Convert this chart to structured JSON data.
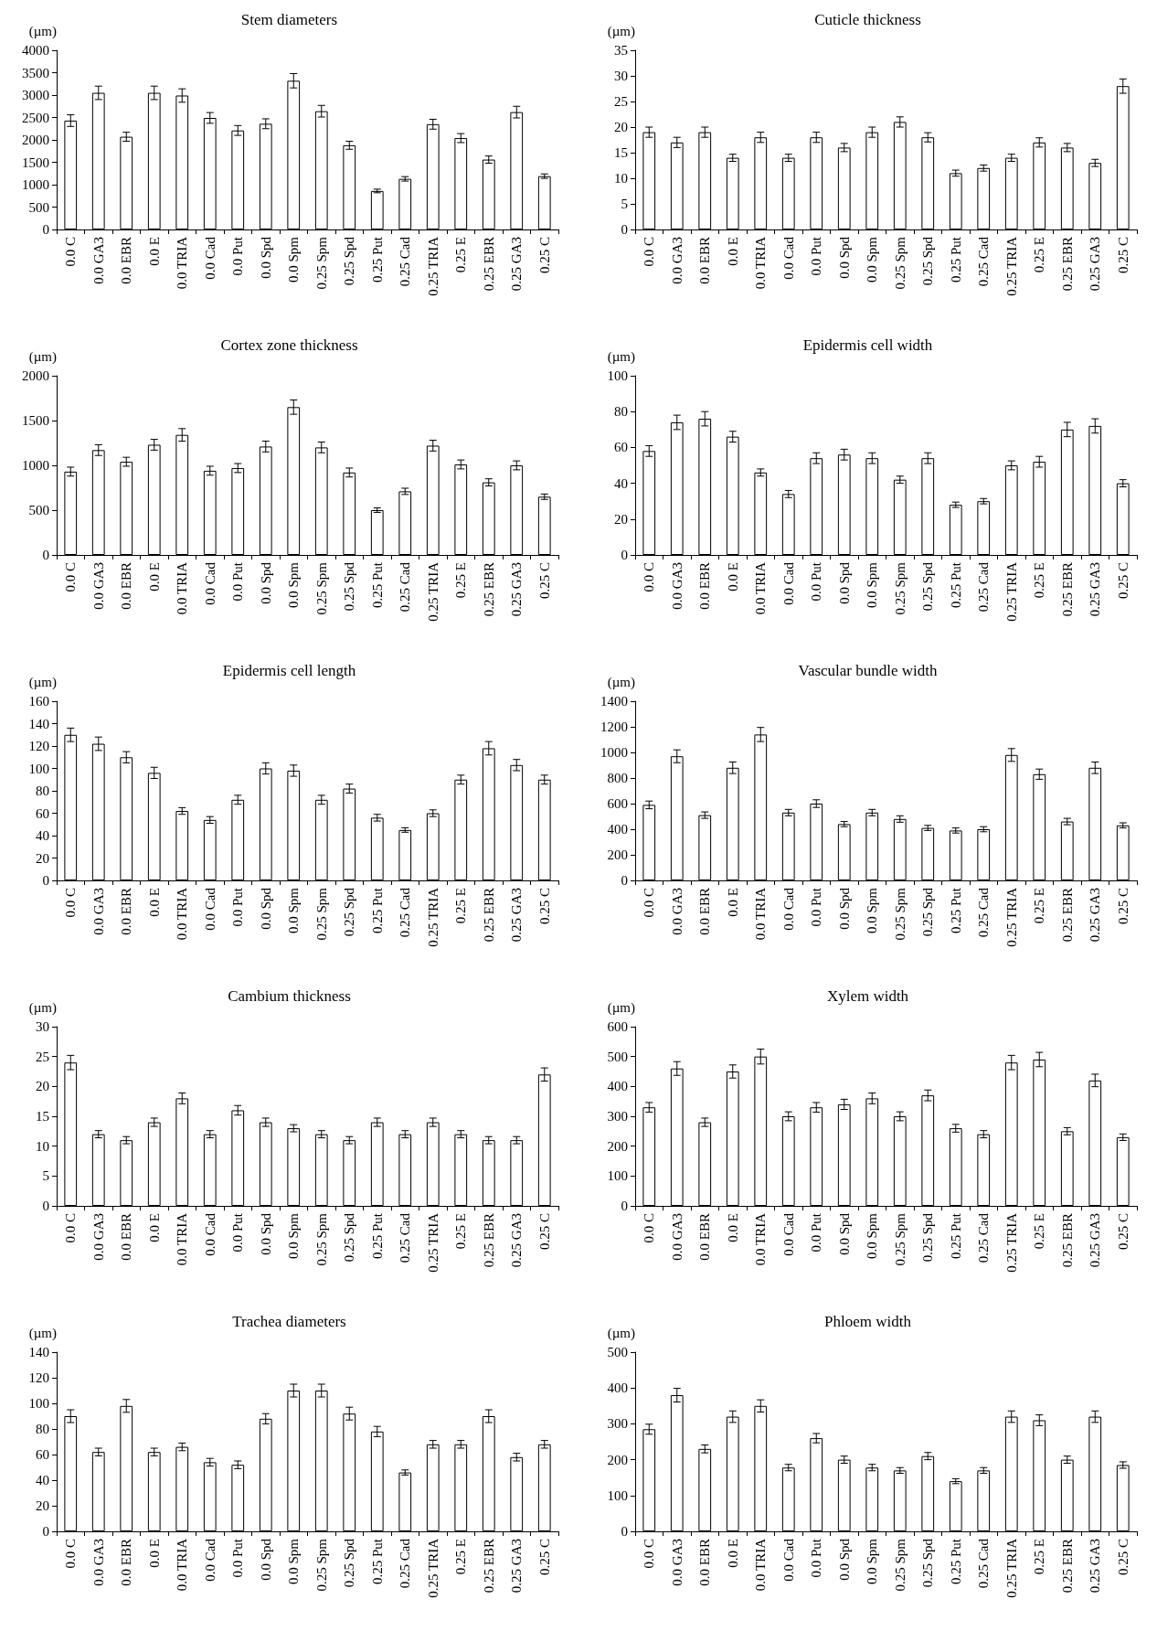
{
  "chart_data": [
    {
      "type": "bar",
      "title": "Stem diameters",
      "ylabel": "(µm)",
      "color": "#ffffff",
      "grid": false,
      "ylim": [
        0,
        4000
      ],
      "yticks": [
        0,
        500,
        1000,
        1500,
        2000,
        2500,
        3000,
        3500,
        4000
      ],
      "categories": [
        "0.0 C",
        "0.0 GA3",
        "0.0 EBR",
        "0.0 E",
        "0.0 TRIA",
        "0.0 Cad",
        "0.0 Put",
        "0.0 Spd",
        "0.0 Spm",
        "0.25 Spm",
        "0.25 Spd",
        "0.25 Put",
        "0.25 Cad",
        "0.25 TRIA",
        "0.25 E",
        "0.25 EBR",
        "0.25 GA3",
        "0.25 C"
      ],
      "values": [
        2430,
        3050,
        2070,
        3050,
        2990,
        2490,
        2210,
        2360,
        3320,
        2640,
        1880,
        860,
        1130,
        2350,
        2040,
        1560,
        2620,
        1190
      ],
      "errors": [
        130,
        150,
        100,
        150,
        150,
        120,
        110,
        110,
        160,
        130,
        90,
        40,
        50,
        110,
        100,
        80,
        130,
        50
      ]
    },
    {
      "type": "bar",
      "title": "Cuticle thickness",
      "ylabel": "(µm)",
      "color": "#ffffff",
      "grid": false,
      "ylim": [
        0,
        35
      ],
      "yticks": [
        0,
        5,
        10,
        15,
        20,
        25,
        30,
        35
      ],
      "categories": [
        "0.0 C",
        "0.0 GA3",
        "0.0 EBR",
        "0.0 E",
        "0.0 TRIA",
        "0.0 Cad",
        "0.0 Put",
        "0.0 Spd",
        "0.0 Spm",
        "0.25 Spm",
        "0.25 Spd",
        "0.25 Put",
        "0.25 Cad",
        "0.25 TRIA",
        "0.25 E",
        "0.25 EBR",
        "0.25 GA3",
        "0.25 C"
      ],
      "values": [
        19,
        17,
        19,
        14,
        18,
        14,
        18,
        16,
        19,
        21,
        18,
        11,
        12,
        14,
        17,
        16,
        13,
        28
      ],
      "errors": [
        1,
        1,
        1,
        0.7,
        1,
        0.7,
        1,
        0.8,
        1,
        1,
        0.9,
        0.6,
        0.6,
        0.7,
        0.9,
        0.8,
        0.7,
        1.4
      ]
    },
    {
      "type": "bar",
      "title": "Cortex zone thickness",
      "ylabel": "(µm)",
      "color": "#ffffff",
      "grid": false,
      "ylim": [
        0,
        2000
      ],
      "yticks": [
        0,
        500,
        1000,
        1500,
        2000
      ],
      "categories": [
        "0.0 C",
        "0.0 GA3",
        "0.0 EBR",
        "0.0 E",
        "0.0 TRIA",
        "0.0 Cad",
        "0.0 Put",
        "0.0 Spd",
        "0.0 Spm",
        "0.25 Spm",
        "0.25 Spd",
        "0.25 Put",
        "0.25 Cad",
        "0.25 TRIA",
        "0.25 E",
        "0.25 EBR",
        "0.25 GA3",
        "0.25 C"
      ],
      "values": [
        930,
        1170,
        1040,
        1230,
        1340,
        940,
        970,
        1210,
        1650,
        1200,
        920,
        500,
        710,
        1220,
        1010,
        810,
        1000,
        650
      ],
      "errors": [
        50,
        60,
        50,
        60,
        70,
        50,
        50,
        60,
        80,
        60,
        50,
        25,
        35,
        60,
        50,
        40,
        50,
        30
      ]
    },
    {
      "type": "bar",
      "title": "Epidermis cell width",
      "ylabel": "(µm)",
      "color": "#ffffff",
      "grid": false,
      "ylim": [
        0,
        100
      ],
      "yticks": [
        0,
        20,
        40,
        60,
        80,
        100
      ],
      "categories": [
        "0.0 C",
        "0.0 GA3",
        "0.0 EBR",
        "0.0 E",
        "0.0 TRIA",
        "0.0 Cad",
        "0.0 Put",
        "0.0 Spd",
        "0.0 Spm",
        "0.25 Spm",
        "0.25 Spd",
        "0.25 Put",
        "0.25 Cad",
        "0.25 TRIA",
        "0.25 E",
        "0.25 EBR",
        "0.25 GA3",
        "0.25 C"
      ],
      "values": [
        58,
        74,
        76,
        66,
        46,
        34,
        54,
        56,
        54,
        42,
        54,
        28,
        30,
        50,
        52,
        70,
        72,
        40
      ],
      "errors": [
        3,
        4,
        4,
        3,
        2,
        2,
        3,
        3,
        3,
        2,
        3,
        1.5,
        1.5,
        2.5,
        3,
        4,
        4,
        2
      ]
    },
    {
      "type": "bar",
      "title": "Epidermis cell length",
      "ylabel": "(µm)",
      "color": "#ffffff",
      "grid": false,
      "ylim": [
        0,
        160
      ],
      "yticks": [
        0,
        20,
        40,
        60,
        80,
        100,
        120,
        140,
        160
      ],
      "categories": [
        "0.0 C",
        "0.0 GA3",
        "0.0 EBR",
        "0.0 E",
        "0.0 TRIA",
        "0.0 Cad",
        "0.0 Put",
        "0.0 Spd",
        "0.0 Spm",
        "0.25 Spm",
        "0.25 Spd",
        "0.25 Put",
        "0.25 Cad",
        "0.25 TRIA",
        "0.25 E",
        "0.25 EBR",
        "0.25 GA3",
        "0.25 C"
      ],
      "values": [
        130,
        122,
        110,
        96,
        62,
        54,
        72,
        100,
        98,
        72,
        82,
        56,
        45,
        60,
        90,
        118,
        103,
        90
      ],
      "errors": [
        6,
        6,
        5,
        5,
        3,
        3,
        4,
        5,
        5,
        4,
        4,
        3,
        2,
        3,
        4,
        6,
        5,
        4
      ]
    },
    {
      "type": "bar",
      "title": "Vascular bundle width",
      "ylabel": "(µm)",
      "color": "#ffffff",
      "grid": false,
      "ylim": [
        0,
        1400
      ],
      "yticks": [
        0,
        200,
        400,
        600,
        800,
        1000,
        1200,
        1400
      ],
      "categories": [
        "0.0 C",
        "0.0 GA3",
        "0.0 EBR",
        "0.0 E",
        "0.0 TRIA",
        "0.0 Cad",
        "0.0 Put",
        "0.0 Spd",
        "0.0 Spm",
        "0.25 Spm",
        "0.25 Spd",
        "0.25 Put",
        "0.25 Cad",
        "0.25 TRIA",
        "0.25 E",
        "0.25 EBR",
        "0.25 GA3",
        "0.25 C"
      ],
      "values": [
        590,
        970,
        510,
        880,
        1140,
        530,
        600,
        440,
        530,
        480,
        410,
        390,
        400,
        980,
        830,
        460,
        880,
        430
      ],
      "errors": [
        30,
        50,
        25,
        45,
        55,
        25,
        30,
        20,
        25,
        25,
        20,
        20,
        20,
        50,
        40,
        25,
        45,
        20
      ]
    },
    {
      "type": "bar",
      "title": "Cambium thickness",
      "ylabel": "(µm)",
      "color": "#ffffff",
      "grid": false,
      "ylim": [
        0,
        30
      ],
      "yticks": [
        0,
        5,
        10,
        15,
        20,
        25,
        30
      ],
      "categories": [
        "0.0 C",
        "0.0 GA3",
        "0.0 EBR",
        "0.0 E",
        "0.0 TRIA",
        "0.0 Cad",
        "0.0 Put",
        "0.0 Spd",
        "0.0 Spm",
        "0.25 Spm",
        "0.25 Spd",
        "0.25 Put",
        "0.25 Cad",
        "0.25 TRIA",
        "0.25 E",
        "0.25 EBR",
        "0.25 GA3",
        "0.25 C"
      ],
      "values": [
        24,
        12,
        11,
        14,
        18,
        12,
        16,
        14,
        13,
        12,
        11,
        14,
        12,
        14,
        12,
        11,
        11,
        22
      ],
      "errors": [
        1.2,
        0.6,
        0.6,
        0.7,
        0.9,
        0.6,
        0.8,
        0.7,
        0.6,
        0.6,
        0.6,
        0.7,
        0.6,
        0.7,
        0.6,
        0.6,
        0.6,
        1.1
      ]
    },
    {
      "type": "bar",
      "title": "Xylem width",
      "ylabel": "(µm)",
      "color": "#ffffff",
      "grid": false,
      "ylim": [
        0,
        600
      ],
      "yticks": [
        0,
        100,
        200,
        300,
        400,
        500,
        600
      ],
      "categories": [
        "0.0 C",
        "0.0 GA3",
        "0.0 EBR",
        "0.0 E",
        "0.0 TRIA",
        "0.0 Cad",
        "0.0 Put",
        "0.0 Spd",
        "0.0 Spm",
        "0.25 Spm",
        "0.25 Spd",
        "0.25 Put",
        "0.25 Cad",
        "0.25 TRIA",
        "0.25 E",
        "0.25 EBR",
        "0.25 GA3",
        "0.25 C"
      ],
      "values": [
        330,
        460,
        280,
        450,
        500,
        300,
        330,
        340,
        360,
        300,
        370,
        260,
        240,
        480,
        490,
        250,
        420,
        230
      ],
      "errors": [
        16,
        23,
        14,
        22,
        25,
        15,
        16,
        17,
        18,
        15,
        18,
        13,
        12,
        24,
        24,
        12,
        21,
        11
      ]
    },
    {
      "type": "bar",
      "title": "Trachea diameters",
      "ylabel": "(µm)",
      "color": "#ffffff",
      "grid": false,
      "ylim": [
        0,
        140
      ],
      "yticks": [
        0,
        20,
        40,
        60,
        80,
        100,
        120,
        140
      ],
      "categories": [
        "0.0 C",
        "0.0 GA3",
        "0.0 EBR",
        "0.0 E",
        "0.0 TRIA",
        "0.0 Cad",
        "0.0 Put",
        "0.0 Spd",
        "0.0 Spm",
        "0.25 Spm",
        "0.25 Spd",
        "0.25 Put",
        "0.25 Cad",
        "0.25 TRIA",
        "0.25 E",
        "0.25 EBR",
        "0.25 GA3",
        "0.25 C"
      ],
      "values": [
        90,
        62,
        98,
        62,
        66,
        54,
        52,
        88,
        110,
        110,
        92,
        78,
        46,
        68,
        68,
        90,
        58,
        68
      ],
      "errors": [
        5,
        3,
        5,
        3,
        3,
        3,
        3,
        4,
        5,
        5,
        5,
        4,
        2,
        3,
        3,
        5,
        3,
        3
      ]
    },
    {
      "type": "bar",
      "title": "Phloem width",
      "ylabel": "(µm)",
      "color": "#ffffff",
      "grid": false,
      "ylim": [
        0,
        500
      ],
      "yticks": [
        0,
        100,
        200,
        300,
        400,
        500
      ],
      "categories": [
        "0.0 C",
        "0.0 GA3",
        "0.0 EBR",
        "0.0 E",
        "0.0 TRIA",
        "0.0 Cad",
        "0.0 Put",
        "0.0 Spd",
        "0.0 Spm",
        "0.25 Spm",
        "0.25 Spd",
        "0.25 Put",
        "0.25 Cad",
        "0.25 TRIA",
        "0.25 E",
        "0.25 EBR",
        "0.25 GA3",
        "0.25 C"
      ],
      "values": [
        285,
        380,
        230,
        320,
        350,
        178,
        260,
        200,
        178,
        170,
        210,
        140,
        170,
        320,
        310,
        200,
        320,
        185
      ],
      "errors": [
        14,
        19,
        11,
        16,
        17,
        9,
        13,
        10,
        9,
        8,
        10,
        7,
        8,
        16,
        15,
        10,
        16,
        9
      ]
    }
  ]
}
